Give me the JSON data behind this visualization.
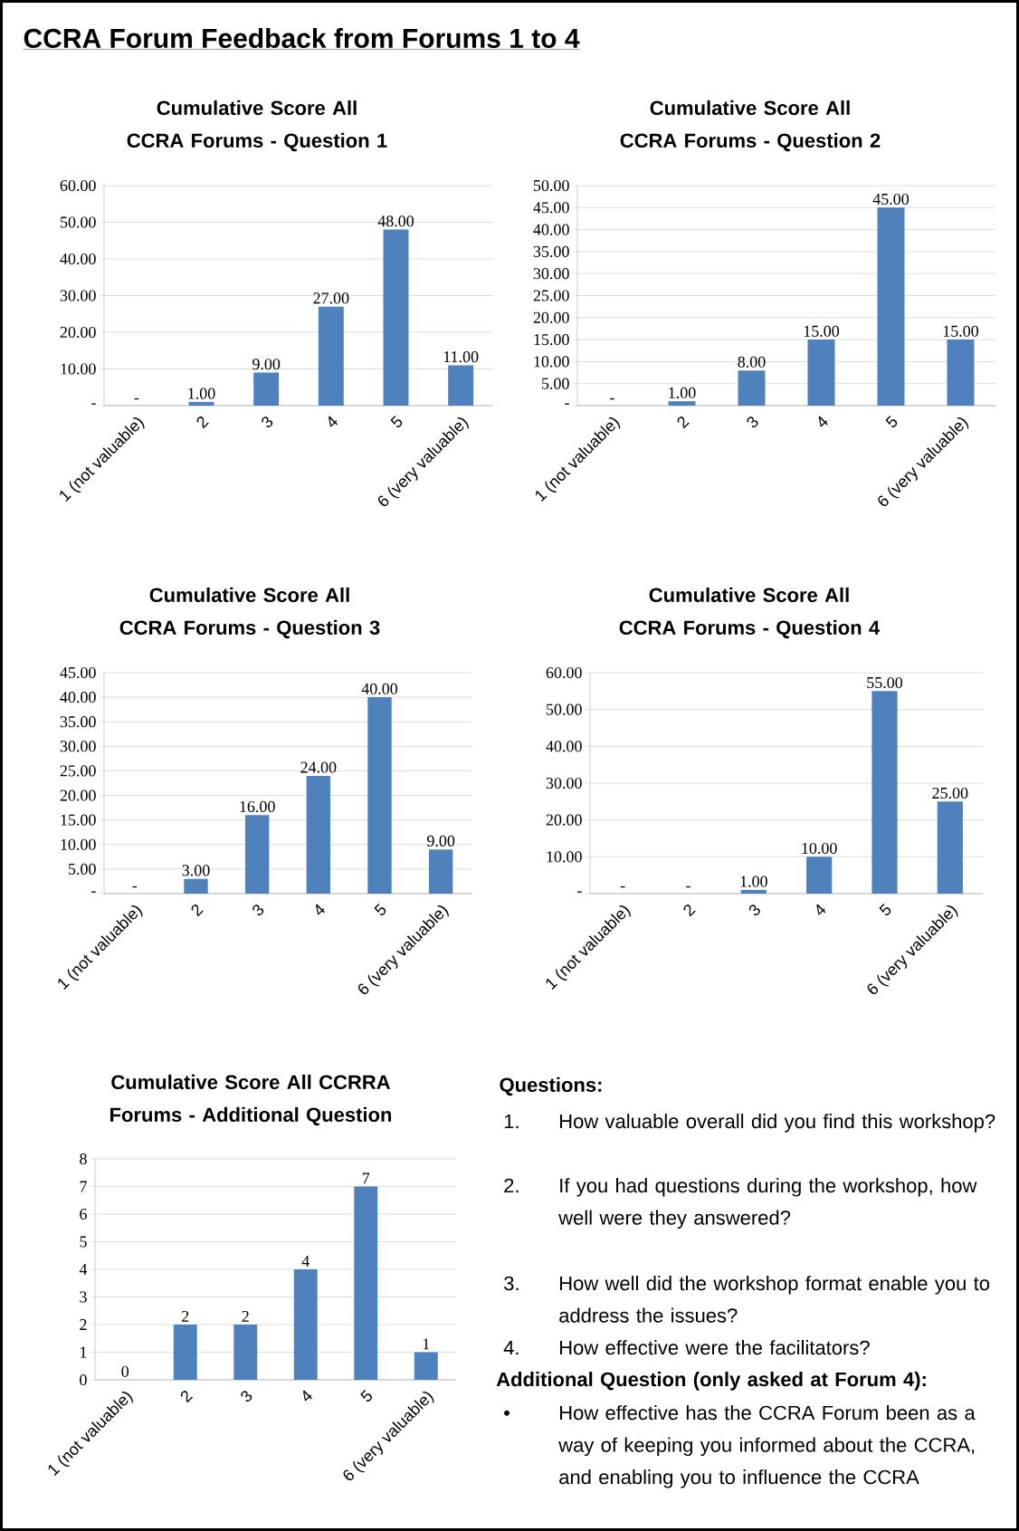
{
  "chart_data": [
    {
      "type": "other",
      "title": "CCRA Forum Feedback from Forums 1 to 4"
    },
    {
      "type": "bar",
      "title": "Cumulative Score All CCRA Forums - Question 1",
      "categories": [
        "1 (not valuable)",
        "2",
        "3",
        "4",
        "5",
        "6 (very valuable)"
      ],
      "values": [
        0,
        1,
        9,
        27,
        48,
        11
      ],
      "value_labels": [
        "-",
        "1.00",
        "9.00",
        "27.00",
        "48.00",
        "11.00"
      ],
      "color": "#4f81bd",
      "ylim": [
        0,
        60
      ],
      "yticks": [
        {
          "value": 0,
          "label": "-"
        },
        {
          "value": 10,
          "label": "10.00"
        },
        {
          "value": 20,
          "label": "20.00"
        },
        {
          "value": 30,
          "label": "30.00"
        },
        {
          "value": 40,
          "label": "40.00"
        },
        {
          "value": 50,
          "label": "50.00"
        },
        {
          "value": 60,
          "label": "60.00"
        }
      ],
      "grid": "y"
    },
    {
      "type": "bar",
      "title": "Cumulative Score All CCRA Forums - Question 2",
      "categories": [
        "1 (not valuable)",
        "2",
        "3",
        "4",
        "5",
        "6 (very valuable)"
      ],
      "values": [
        0,
        1,
        8,
        15,
        45,
        15
      ],
      "value_labels": [
        "-",
        "1.00",
        "8.00",
        "15.00",
        "45.00",
        "15.00"
      ],
      "color": "#4f81bd",
      "ylim": [
        0,
        50
      ],
      "yticks": [
        {
          "value": 0,
          "label": "-"
        },
        {
          "value": 5,
          "label": "5.00"
        },
        {
          "value": 10,
          "label": "10.00"
        },
        {
          "value": 15,
          "label": "15.00"
        },
        {
          "value": 20,
          "label": "20.00"
        },
        {
          "value": 25,
          "label": "25.00"
        },
        {
          "value": 30,
          "label": "30.00"
        },
        {
          "value": 35,
          "label": "35.00"
        },
        {
          "value": 40,
          "label": "40.00"
        },
        {
          "value": 45,
          "label": "45.00"
        },
        {
          "value": 50,
          "label": "50.00"
        }
      ],
      "grid": "y"
    },
    {
      "type": "bar",
      "title": "Cumulative Score All CCRA Forums - Question 3",
      "categories": [
        "1 (not valuable)",
        "2",
        "3",
        "4",
        "5",
        "6 (very valuable)"
      ],
      "values": [
        0,
        3,
        16,
        24,
        40,
        9
      ],
      "value_labels": [
        "-",
        "3.00",
        "16.00",
        "24.00",
        "40.00",
        "9.00"
      ],
      "color": "#4f81bd",
      "ylim": [
        0,
        45
      ],
      "yticks": [
        {
          "value": 0,
          "label": "-"
        },
        {
          "value": 5,
          "label": "5.00"
        },
        {
          "value": 10,
          "label": "10.00"
        },
        {
          "value": 15,
          "label": "15.00"
        },
        {
          "value": 20,
          "label": "20.00"
        },
        {
          "value": 25,
          "label": "25.00"
        },
        {
          "value": 30,
          "label": "30.00"
        },
        {
          "value": 35,
          "label": "35.00"
        },
        {
          "value": 40,
          "label": "40.00"
        },
        {
          "value": 45,
          "label": "45.00"
        }
      ],
      "grid": "y"
    },
    {
      "type": "bar",
      "title": "Cumulative Score All CCRA Forums - Question 4",
      "categories": [
        "1 (not valuable)",
        "2",
        "3",
        "4",
        "5",
        "6 (very valuable)"
      ],
      "values": [
        0,
        0,
        1,
        10,
        55,
        25
      ],
      "value_labels": [
        "-",
        "-",
        "1.00",
        "10.00",
        "55.00",
        "25.00"
      ],
      "color": "#4f81bd",
      "ylim": [
        0,
        60
      ],
      "yticks": [
        {
          "value": 0,
          "label": "-"
        },
        {
          "value": 10,
          "label": "10.00"
        },
        {
          "value": 20,
          "label": "20.00"
        },
        {
          "value": 30,
          "label": "30.00"
        },
        {
          "value": 40,
          "label": "40.00"
        },
        {
          "value": 50,
          "label": "50.00"
        },
        {
          "value": 60,
          "label": "60.00"
        }
      ],
      "grid": "y"
    },
    {
      "type": "bar",
      "title": "Cumulative Score All CCRRA Forums - Additional Question",
      "categories": [
        "1 (not valuable)",
        "2",
        "3",
        "4",
        "5",
        "6 (very valuable)"
      ],
      "values": [
        0,
        2,
        2,
        4,
        7,
        1
      ],
      "data_labels": true,
      "color": "#4f81bd",
      "ylim": [
        0,
        8
      ],
      "yticks": [
        0,
        1,
        2,
        3,
        4,
        5,
        6,
        7,
        8
      ],
      "grid": "y"
    },
    {
      "type": "other",
      "title": "Questions:",
      "annotations": [
        "1.",
        "How valuable overall did you find this workshop?",
        "2.",
        "If you had questions during the workshop, how well were they answered?",
        "3.",
        "How well did the workshop format enable you to address the issues?",
        "4.",
        "How effective were the facilitators?",
        "Additional Question (only asked at Forum 4):",
        "•",
        "How effective has the CCRA Forum been as a way of keeping you informed about the CCRA, and enabling you to influence the CCRA"
      ]
    }
  ]
}
